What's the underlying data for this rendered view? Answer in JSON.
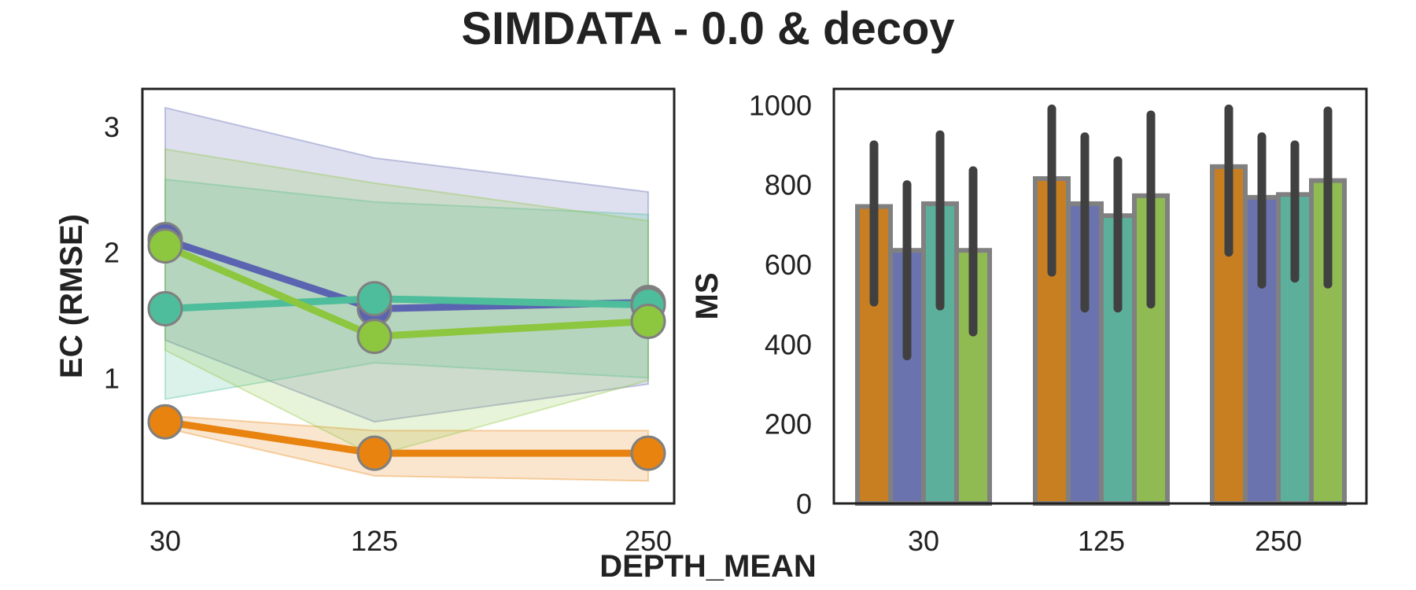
{
  "figure": {
    "title": "SIMDATA - 0.0 & decoy",
    "shared_xlabel": "DEPTH_MEAN"
  },
  "colors": {
    "series": [
      "#e8830f",
      "#5b64b0",
      "#4dbd9b",
      "#8dc63f"
    ],
    "bar_fill": [
      "#c87f22",
      "#6a73ad",
      "#5cb09b",
      "#90bb52"
    ],
    "bar_edge": "#808080",
    "errorbar": "#404040",
    "marker_edge": "#808080",
    "frame": "#222222"
  },
  "chart_data": [
    {
      "type": "line",
      "xlabel": "",
      "ylabel": "EC (RMSE)",
      "categories": [
        "30",
        "125",
        "250"
      ],
      "yticks": [
        "1",
        "2",
        "3"
      ],
      "ylim": [
        0.0,
        3.3
      ],
      "series": [
        {
          "values": [
            0.65,
            0.4,
            0.4
          ],
          "ci_low": [
            0.6,
            0.22,
            0.18
          ],
          "ci_high": [
            0.7,
            0.58,
            0.58
          ]
        },
        {
          "values": [
            2.1,
            1.55,
            1.6
          ],
          "ci_low": [
            1.3,
            0.65,
            0.95
          ],
          "ci_high": [
            3.15,
            2.75,
            2.48
          ]
        },
        {
          "values": [
            1.55,
            1.63,
            1.58
          ],
          "ci_low": [
            0.83,
            1.12,
            1.0
          ],
          "ci_high": [
            2.58,
            2.4,
            2.3
          ]
        },
        {
          "values": [
            2.05,
            1.33,
            1.45
          ],
          "ci_low": [
            1.22,
            0.38,
            0.98
          ],
          "ci_high": [
            2.82,
            2.55,
            2.25
          ]
        }
      ],
      "grid": false,
      "legend": "none"
    },
    {
      "type": "bar",
      "xlabel": "",
      "ylabel": "MS",
      "categories": [
        "30",
        "125",
        "250"
      ],
      "yticks": [
        "0",
        "200",
        "400",
        "600",
        "800",
        "1000"
      ],
      "ylim": [
        0,
        1040
      ],
      "series": [
        {
          "values": [
            745,
            815,
            845
          ],
          "err_low": [
            505,
            580,
            630
          ],
          "err_high": [
            900,
            990,
            990
          ]
        },
        {
          "values": [
            635,
            752,
            768
          ],
          "err_low": [
            370,
            490,
            550
          ],
          "err_high": [
            800,
            920,
            920
          ]
        },
        {
          "values": [
            752,
            722,
            775
          ],
          "err_low": [
            495,
            490,
            565
          ],
          "err_high": [
            925,
            860,
            900
          ]
        },
        {
          "values": [
            635,
            772,
            810
          ],
          "err_low": [
            430,
            500,
            550
          ],
          "err_high": [
            835,
            975,
            985
          ]
        }
      ],
      "grid": false,
      "legend": "none"
    }
  ]
}
